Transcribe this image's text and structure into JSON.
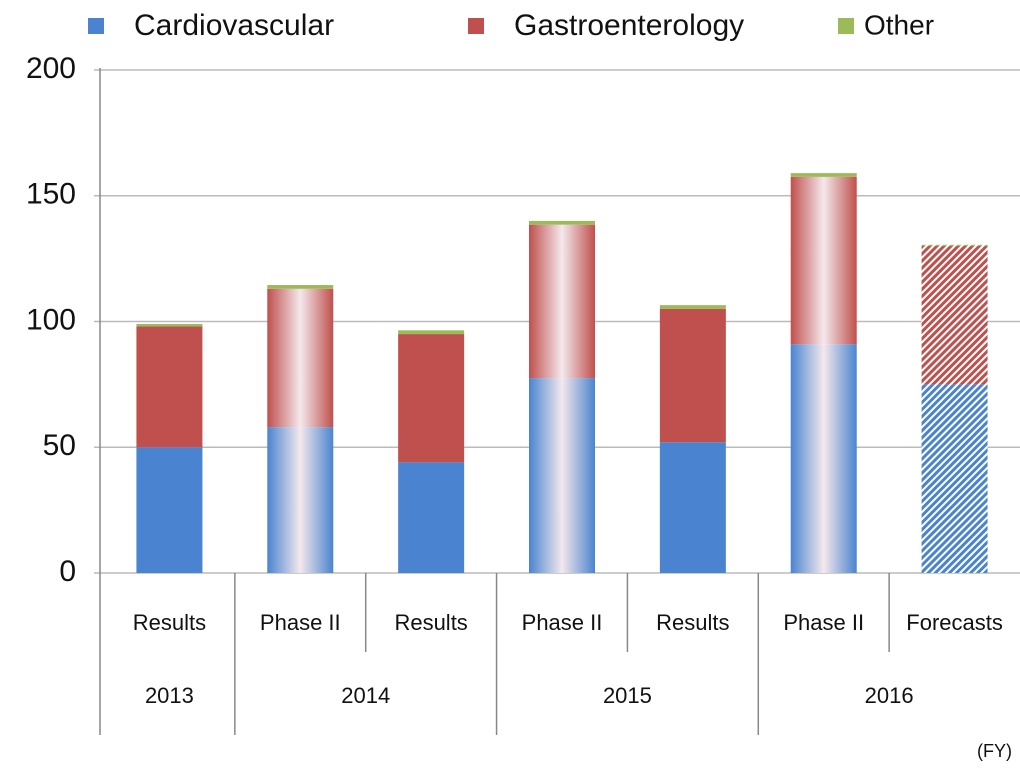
{
  "chart_data": {
    "type": "stacked_bar",
    "categories": [
      "Results",
      "Phase II",
      "Results",
      "Phase II",
      "Results",
      "Phase II",
      "Forecasts"
    ],
    "groups": [
      {
        "label": "2013",
        "span": 1
      },
      {
        "label": "2014",
        "span": 2
      },
      {
        "label": "2015",
        "span": 2
      },
      {
        "label": "2016",
        "span": 2
      }
    ],
    "bar_styles": [
      "solid",
      "gradient",
      "solid",
      "gradient",
      "solid",
      "gradient",
      "hatched"
    ],
    "series": [
      {
        "name": "Cardiovascular",
        "color": "#4a84d0",
        "values": [
          50,
          58,
          44,
          77.5,
          52,
          91,
          75
        ]
      },
      {
        "name": "Gastroenterology",
        "color": "#c0504d",
        "values": [
          48,
          55,
          51,
          61,
          53,
          66.5,
          55
        ]
      },
      {
        "name": "Other",
        "color": "#9bbb59",
        "values": [
          1,
          1.5,
          1.5,
          1.5,
          1.5,
          1.5,
          0.5
        ]
      }
    ],
    "ylim": [
      0,
      200
    ],
    "yticks": [
      0,
      50,
      100,
      150,
      200
    ],
    "grid": true,
    "legend": "top",
    "x_unit_label": "(FY)"
  }
}
